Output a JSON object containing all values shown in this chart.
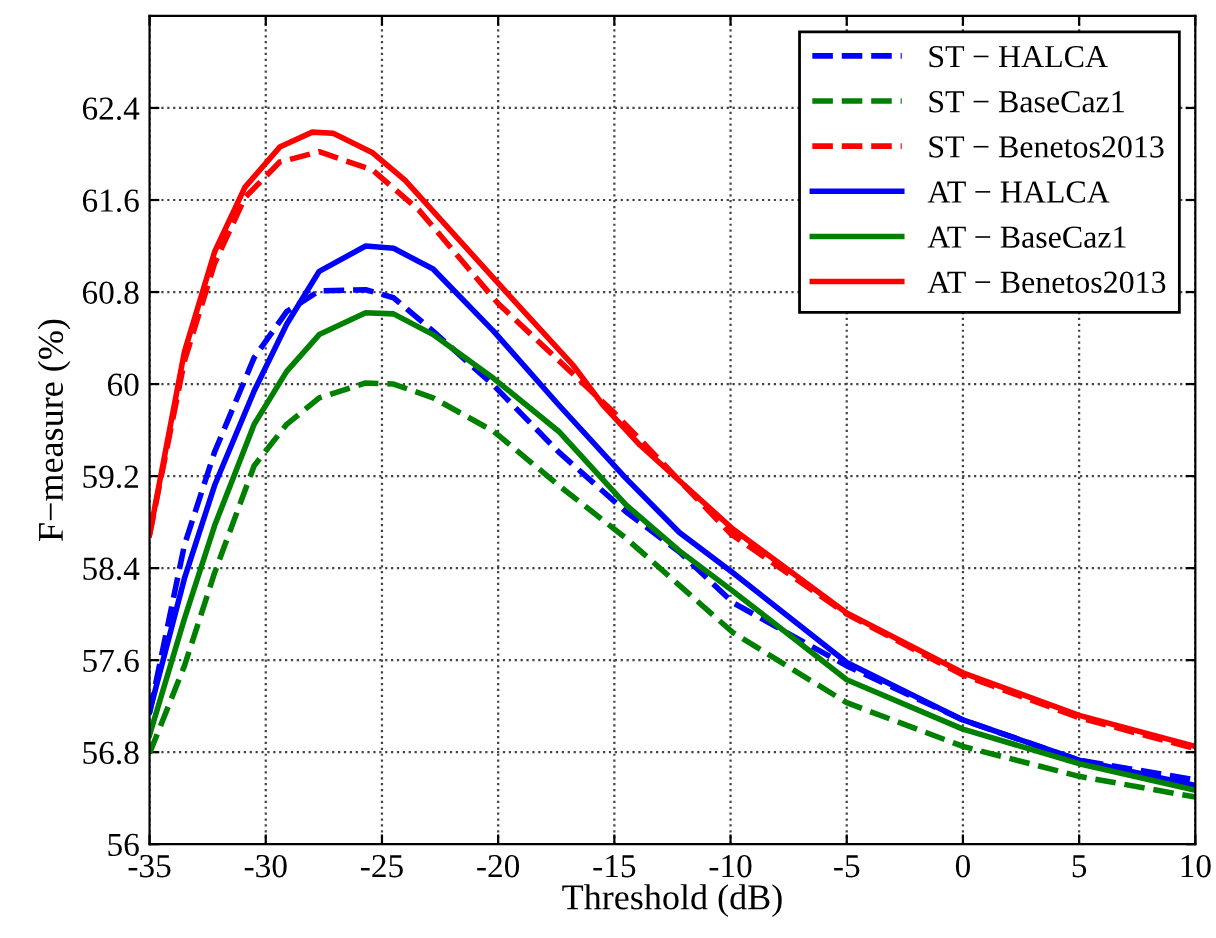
{
  "chart_data": {
    "type": "line",
    "xlabel": "Threshold (dB)",
    "ylabel": "F−measure (%)",
    "xlim": [
      -35,
      10
    ],
    "xticks": [
      -35,
      -30,
      -25,
      -20,
      -15,
      -10,
      -5,
      0,
      5,
      10
    ],
    "ylim": [
      56,
      63.2
    ],
    "yticks": [
      56,
      56.8,
      57.6,
      58.4,
      59.2,
      60,
      60.8,
      61.6,
      62.4
    ],
    "grid": true,
    "legend": "top right",
    "series": [
      {
        "name": "ST − HALCA",
        "color": "#0000ff",
        "line_style": "dashed",
        "x": [
          -35,
          -33.5,
          -32.2,
          -30.5,
          -29.1,
          -27.7,
          -25.7,
          -24.5,
          -22.8,
          -20.2,
          -17.4,
          -14.5,
          -12.2,
          -9.9,
          -5,
          0,
          5,
          10
        ],
        "values": [
          57.14,
          58.6,
          59.41,
          60.23,
          60.63,
          60.81,
          60.82,
          60.75,
          60.46,
          59.99,
          59.41,
          58.89,
          58.54,
          58.1,
          57.55,
          57.08,
          56.73,
          56.56
        ]
      },
      {
        "name": "ST − BaseCaz1",
        "color": "#008000",
        "line_style": "dashed",
        "x": [
          -35,
          -33.5,
          -32.2,
          -30.5,
          -29.1,
          -27.7,
          -25.7,
          -24.5,
          -22.8,
          -20.2,
          -17.4,
          -14.5,
          -12.2,
          -9.9,
          -5,
          0,
          5,
          10
        ],
        "values": [
          56.79,
          57.55,
          58.36,
          59.29,
          59.65,
          59.88,
          60.01,
          60.0,
          59.88,
          59.59,
          59.12,
          58.66,
          58.25,
          57.84,
          57.23,
          56.85,
          56.59,
          56.41
        ]
      },
      {
        "name": "ST − Benetos2013",
        "color": "#ff0000",
        "line_style": "dashed",
        "x": [
          -35,
          -33.5,
          -32.2,
          -30.9,
          -29.4,
          -27.7,
          -25.4,
          -23.4,
          -20,
          -15,
          -10,
          -5,
          0,
          5,
          10
        ],
        "values": [
          58.69,
          60.2,
          61.05,
          61.62,
          61.93,
          62.02,
          61.86,
          61.51,
          60.7,
          59.75,
          58.7,
          58.0,
          57.47,
          57.1,
          56.83
        ]
      },
      {
        "name": "AT − HALCA",
        "color": "#0000ff",
        "line_style": "solid",
        "x": [
          -35,
          -33.5,
          -32.2,
          -30.5,
          -29.1,
          -27.7,
          -25.7,
          -24.5,
          -22.8,
          -20.2,
          -17.4,
          -14.5,
          -12.2,
          -9.9,
          -5,
          0,
          5,
          10
        ],
        "values": [
          57.15,
          58.31,
          59.12,
          59.94,
          60.52,
          60.98,
          61.2,
          61.18,
          61.0,
          60.46,
          59.82,
          59.18,
          58.71,
          58.36,
          57.58,
          57.08,
          56.73,
          56.51
        ]
      },
      {
        "name": "AT − BaseCaz1",
        "color": "#008000",
        "line_style": "solid",
        "x": [
          -35,
          -33.5,
          -32.2,
          -30.5,
          -29.1,
          -27.7,
          -25.7,
          -24.5,
          -22.8,
          -20.2,
          -17.4,
          -14.5,
          -12.2,
          -9.9,
          -5,
          0,
          5,
          10
        ],
        "values": [
          56.95,
          57.96,
          58.77,
          59.65,
          60.11,
          60.43,
          60.62,
          60.61,
          60.43,
          60.05,
          59.59,
          58.95,
          58.55,
          58.2,
          57.43,
          57.0,
          56.7,
          56.47
        ]
      },
      {
        "name": "AT − Benetos2013",
        "color": "#ff0000",
        "line_style": "solid",
        "x": [
          -35,
          -33.5,
          -32.2,
          -30.9,
          -29.4,
          -28,
          -27.1,
          -25.4,
          -24,
          -21.4,
          -19.7,
          -16.8,
          -15.5,
          -13.9,
          -9.9,
          -5,
          0,
          5,
          10
        ],
        "values": [
          58.69,
          60.28,
          61.15,
          61.71,
          62.06,
          62.19,
          62.18,
          62.01,
          61.77,
          61.19,
          60.81,
          60.17,
          59.82,
          59.47,
          58.74,
          58.01,
          57.49,
          57.12,
          56.85
        ]
      }
    ]
  }
}
